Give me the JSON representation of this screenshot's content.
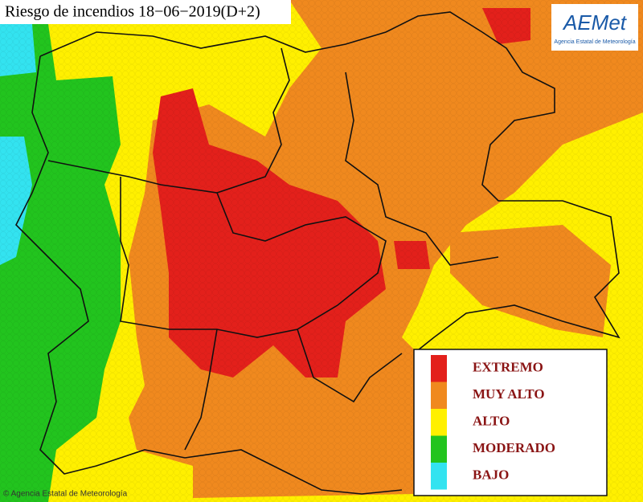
{
  "title": "Riesgo de incendios 18−06−2019(D+2)",
  "logo": {
    "name": "AEMet",
    "subtitle": "Agencia Estatal de Meteorología"
  },
  "legend": [
    {
      "label": "EXTREMO",
      "color": "#e3201b"
    },
    {
      "label": "MUY ALTO",
      "color": "#f0891e"
    },
    {
      "label": "ALTO",
      "color": "#fff000"
    },
    {
      "label": "MODERADO",
      "color": "#22c41e"
    },
    {
      "label": "BAJO",
      "color": "#33e3f0"
    }
  ],
  "footer": "© Agencia Estatal de Meteorología"
}
